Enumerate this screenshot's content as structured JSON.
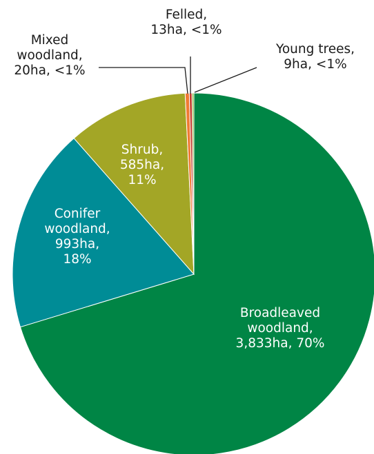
{
  "chart_data": {
    "type": "pie",
    "title": "",
    "slices": [
      {
        "name": "Broadleaved woodland",
        "value": 3833,
        "color": "#008545",
        "label_lines": [
          "Broadleaved",
          "woodland,",
          "3,833ha, 70%"
        ]
      },
      {
        "name": "Conifer woodland",
        "value": 993,
        "color": "#008c96",
        "label_lines": [
          "Conifer",
          "woodland,",
          "993ha,",
          "18%"
        ]
      },
      {
        "name": "Shrub",
        "value": 585,
        "color": "#a3a626",
        "label_lines": [
          "Shrub,",
          "585ha,",
          "11%"
        ]
      },
      {
        "name": "Mixed woodland",
        "value": 20,
        "color": "#f07a34",
        "label_lines": [
          "Mixed",
          "woodland,",
          "20ha, <1%"
        ]
      },
      {
        "name": "Felled",
        "value": 13,
        "color": "#c0392b",
        "label_lines": [
          "Felled,",
          "13ha, <1%"
        ]
      },
      {
        "name": "Young trees",
        "value": 9,
        "color": "#8db84a",
        "label_lines": [
          "Young trees,",
          "9ha, <1%"
        ]
      }
    ]
  }
}
